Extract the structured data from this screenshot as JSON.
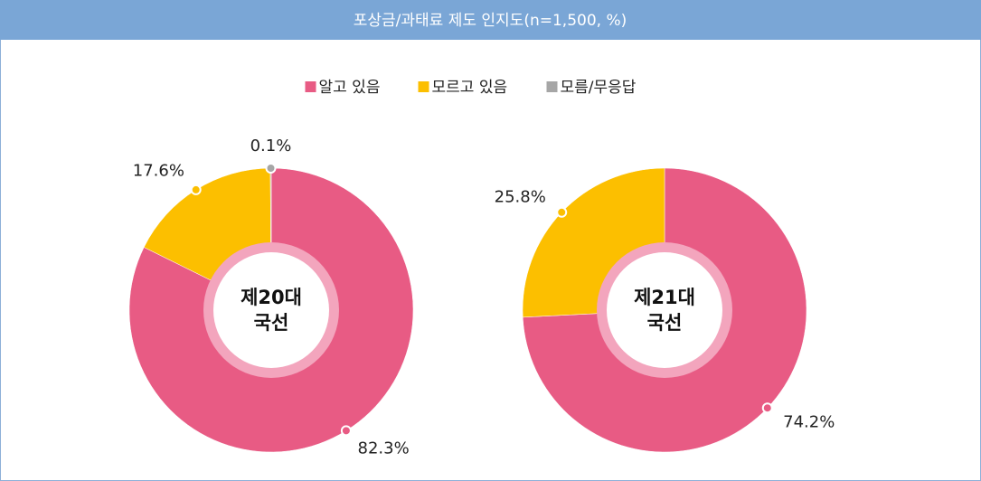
{
  "title": "포상금/과태료 제도 인지도(n=1,500, %)",
  "legend": {
    "categories": [
      "알고 있음",
      "모르고 있음",
      "모름/무응답"
    ],
    "colors": [
      "#e85b84",
      "#fcbf00",
      "#a6a6a6"
    ]
  },
  "chart_data": [
    {
      "type": "donut",
      "center_label": [
        "제20대",
        "국선"
      ],
      "values": [
        82.3,
        17.6,
        0.1
      ],
      "value_labels": [
        "82.3%",
        "17.6%",
        "0.1%"
      ]
    },
    {
      "type": "donut",
      "center_label": [
        "제21대",
        "국선"
      ],
      "values": [
        74.2,
        25.8
      ],
      "value_labels": [
        "74.2%",
        "25.8%"
      ]
    }
  ]
}
